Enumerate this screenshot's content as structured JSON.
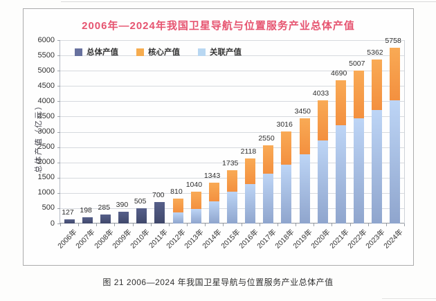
{
  "figure": {
    "caption": "图 21  2006—2024 年我国卫星导航与位置服务产业总体产值"
  },
  "colors": {
    "title_red": "#e65470",
    "gridline": "#d6d9de",
    "axis": "#8d929b",
    "label_text": "#2d2d2d"
  },
  "chart_data": {
    "type": "bar",
    "stacked": true,
    "title": "2006年—2024年我国卫星导航与位置服务产业总体产值",
    "ylabel": "总体产值（亿元）",
    "xlabel": "",
    "ylim": [
      0,
      6000
    ],
    "ytick_step": 500,
    "grid": "horizontal",
    "legend_position": "top-left-inside",
    "legend": [
      {
        "label": "总体产值",
        "color": "#67719e"
      },
      {
        "label": "核心产值",
        "color": "#f6ac4f"
      },
      {
        "label": "关联产值",
        "color": "#b8d7f2"
      }
    ],
    "categories": [
      "2006年",
      "2007年",
      "2008年",
      "2009年",
      "2010年",
      "2011年",
      "2012年",
      "2013年",
      "2014年",
      "2015年",
      "2016年",
      "2017年",
      "2018年",
      "2019年",
      "2020年",
      "2021年",
      "2022年",
      "2023年",
      "2024年"
    ],
    "totals": [
      127,
      198,
      285,
      390,
      505,
      700,
      810,
      1040,
      1343,
      1735,
      2118,
      2550,
      3016,
      3450,
      4033,
      4690,
      5007,
      5362,
      5758
    ],
    "series": [
      {
        "name": "总体产值",
        "color": "#4a5278",
        "color_top": "#565f8a",
        "color_bottom": "#40486b",
        "values": [
          127,
          198,
          285,
          390,
          505,
          700,
          null,
          null,
          null,
          null,
          null,
          null,
          null,
          null,
          null,
          null,
          null,
          null,
          null
        ]
      },
      {
        "name": "核心产值",
        "color": "#f79c49",
        "color_top": "#f9aa55",
        "color_bottom": "#f3903f",
        "values": [
          null,
          null,
          null,
          null,
          null,
          null,
          440,
          575,
          613,
          695,
          818,
          920,
          1096,
          1190,
          1313,
          1470,
          1557,
          1642,
          1728
        ]
      },
      {
        "name": "关联产值",
        "color": "#a6c0e6",
        "color_top": "#bdd5f6",
        "color_bottom": "#8fa5cd",
        "values": [
          null,
          null,
          null,
          null,
          null,
          null,
          370,
          465,
          730,
          1040,
          1300,
          1630,
          1920,
          2260,
          2720,
          3220,
          3450,
          3720,
          4030
        ]
      }
    ]
  }
}
